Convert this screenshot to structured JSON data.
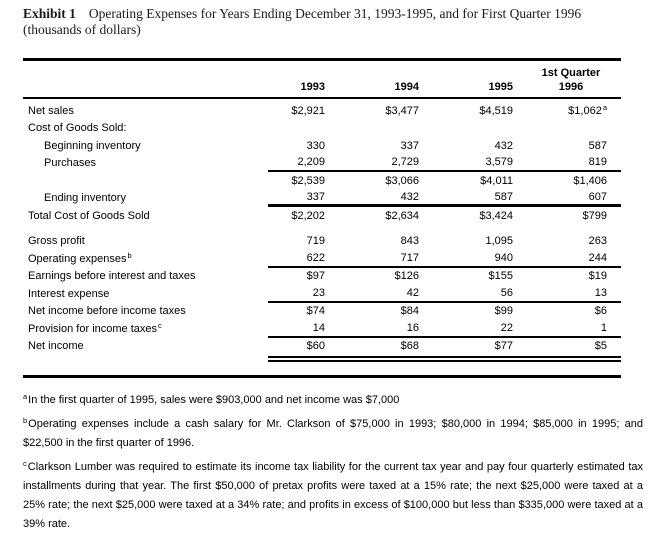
{
  "title": {
    "exhibit": "Exhibit 1",
    "text": "Operating Expenses for Years Ending December 31, 1993-1995, and for First Quarter 1996",
    "subtitle": "(thousands of dollars)"
  },
  "table": {
    "columns": [
      "1993",
      "1994",
      "1995"
    ],
    "q1_column": {
      "line1": "1st Quarter",
      "line2": "1996"
    },
    "rows": [
      {
        "label": "Net sales",
        "values": [
          "$2,921",
          "$3,477",
          "$4,519",
          "$1,062"
        ],
        "vsup": "a"
      },
      {
        "label": "Cost of Goods Sold:",
        "values": []
      },
      {
        "label": "Beginning inventory",
        "indent": true,
        "values": [
          "330",
          "337",
          "432",
          "587"
        ]
      },
      {
        "label": "Purchases",
        "indent": true,
        "values": [
          "2,209",
          "2,729",
          "3,579",
          "819"
        ]
      },
      {
        "label": "",
        "values": [
          "$2,539",
          "$3,066",
          "$4,011",
          "$1,406"
        ]
      },
      {
        "label": "Ending inventory",
        "indent": true,
        "values": [
          "337",
          "432",
          "587",
          "607"
        ]
      },
      {
        "label": "Total Cost of Goods Sold",
        "values": [
          "$2,202",
          "$2,634",
          "$3,424",
          "$799"
        ]
      },
      {
        "label": "Gross profit",
        "values": [
          "719",
          "843",
          "1,095",
          "263"
        ]
      },
      {
        "label": "Operating expenses",
        "sup": "b",
        "values": [
          "622",
          "717",
          "940",
          "244"
        ]
      },
      {
        "label": "Earnings before interest and taxes",
        "values": [
          "$97",
          "$126",
          "$155",
          "$19"
        ]
      },
      {
        "label": "Interest expense",
        "values": [
          "23",
          "42",
          "56",
          "13"
        ]
      },
      {
        "label": "Net income before income taxes",
        "values": [
          "$74",
          "$84",
          "$99",
          "$6"
        ]
      },
      {
        "label": "Provision for income taxes",
        "sup": "c",
        "values": [
          "14",
          "16",
          "22",
          "1"
        ]
      },
      {
        "label": "Net income",
        "values": [
          "$60",
          "$68",
          "$77",
          "$5"
        ]
      }
    ]
  },
  "footnotes": [
    {
      "marker": "a",
      "text": "In the first quarter of 1995, sales were $903,000 and net income was $7,000"
    },
    {
      "marker": "b",
      "text": "Operating expenses include a cash salary for Mr. Clarkson of $75,000 in 1993; $80,000 in 1994; $85,000 in 1995; and $22,500 in the first quarter of 1996."
    },
    {
      "marker": "c",
      "text": "Clarkson Lumber was required to estimate its income tax liability for the current tax year and pay four quarterly estimated tax installments during that year.  The first $50,000 of pretax profits were taxed at a 15% rate; the next $25,000 were taxed at a 25% rate; the next $25,000 were taxed at a 34% rate; and profits in excess of $100,000 but less than $335,000 were taxed at a 39% rate."
    }
  ]
}
